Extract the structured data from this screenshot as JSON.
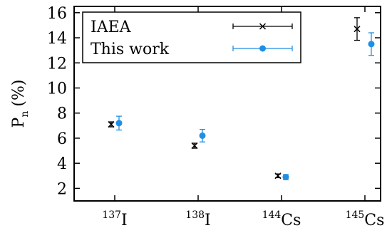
{
  "chart_data": {
    "type": "scatter",
    "categories": [
      {
        "mass": "137",
        "element": "I"
      },
      {
        "mass": "138",
        "element": "I"
      },
      {
        "mass": "144",
        "element": "Cs"
      },
      {
        "mass": "145",
        "element": "Cs"
      }
    ],
    "ylabel": {
      "main": "P",
      "sub": "n",
      "unit": "(%)"
    },
    "ylim": [
      1,
      16.5
    ],
    "yticks": [
      2,
      4,
      6,
      8,
      10,
      12,
      14,
      16
    ],
    "grid": false,
    "legend_position": "top",
    "series": [
      {
        "name": "IAEA",
        "marker": "cross",
        "color": "#000000",
        "values": [
          7.1,
          5.4,
          3.0,
          14.7
        ],
        "errors": [
          0.2,
          0.2,
          0.15,
          0.9
        ]
      },
      {
        "name": "This work",
        "marker": "circle",
        "color": "#1f8fe6",
        "values": [
          7.2,
          6.2,
          2.9,
          13.5
        ],
        "errors": [
          0.55,
          0.5,
          0.2,
          0.9
        ]
      }
    ]
  }
}
